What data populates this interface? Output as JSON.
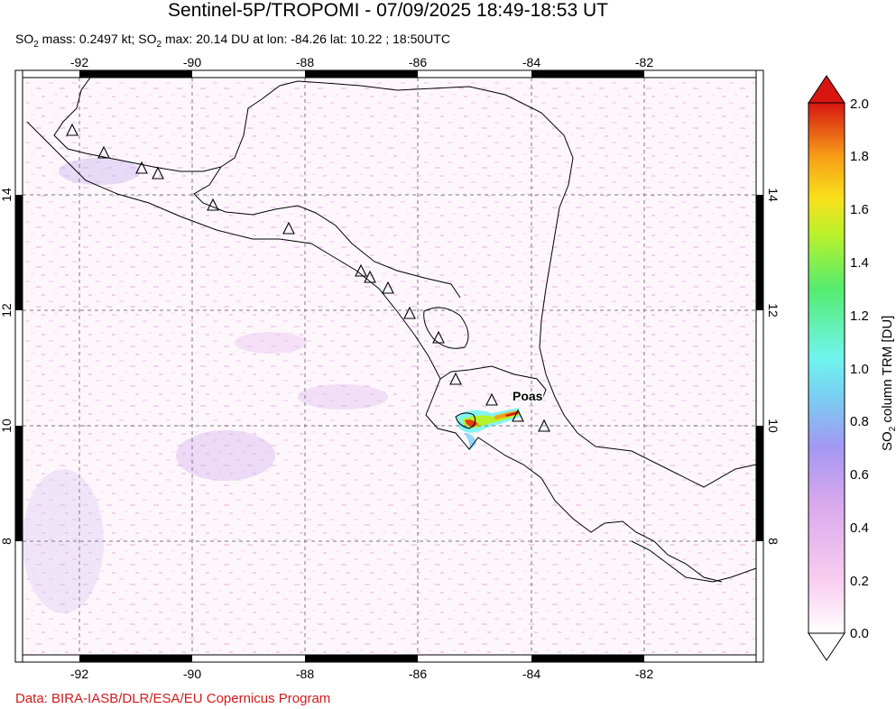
{
  "title": "Sentinel-5P/TROPOMI - 07/09/2025 18:49-18:53 UT",
  "subtitle": {
    "mass_prefix": "SO",
    "mass_sub": "2",
    "mass_text": " mass: 0.2497 kt; SO",
    "max_sub": "2",
    "max_text": " max: 20.14 DU at lon: -84.26 lat: 10.22 ; 18:50UTC"
  },
  "map": {
    "lon_ticks": [
      "-92",
      "-90",
      "-88",
      "-86",
      "-84",
      "-82"
    ],
    "lat_ticks": [
      "14",
      "12",
      "10",
      "8"
    ],
    "volcano_label": "Poas"
  },
  "colorbar": {
    "ticks": [
      "2.0",
      "1.8",
      "1.6",
      "1.4",
      "1.2",
      "1.0",
      "0.8",
      "0.6",
      "0.4",
      "0.2",
      "0.0"
    ],
    "label_prefix": "SO",
    "label_sub": "2",
    "label_text": " column TRM [DU]",
    "colors": [
      "#ffffff",
      "#f9cdf0",
      "#d7a7ec",
      "#a497f3",
      "#78d1f2",
      "#6ff5ee",
      "#55ec6e",
      "#b8f12c",
      "#f9e11c",
      "#f79c17",
      "#e93a0f",
      "#d71612"
    ]
  },
  "credit": "Data: BIRA-IASB/DLR/ESA/EU Copernicus Program"
}
